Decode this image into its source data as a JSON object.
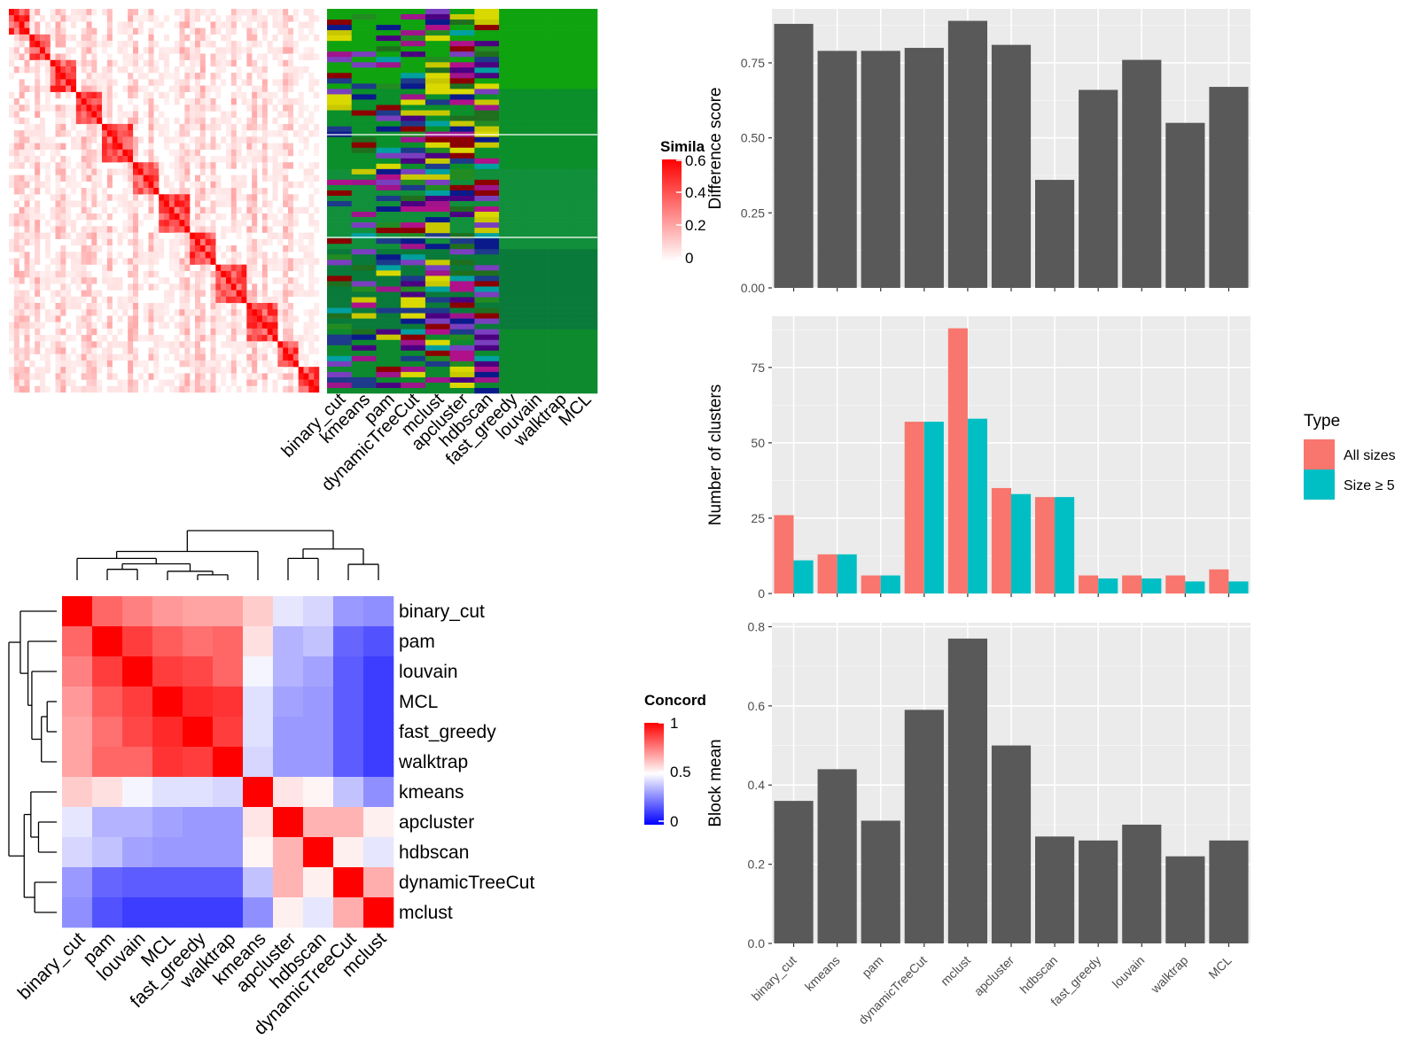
{
  "similarity_panel": {
    "legend_title": "Simila",
    "legend_ticks": [
      "0.6",
      "0.4",
      "0.2",
      "0"
    ],
    "method_labels": [
      "binary_cut",
      "kmeans",
      "pam",
      "dynamicTreeCut",
      "mclust",
      "apcluster",
      "hdbscan",
      "fast_greedy",
      "louvain",
      "walktrap",
      "MCL"
    ]
  },
  "chart_data": [
    {
      "type": "heatmap",
      "title": "",
      "legend_title": "Concord",
      "legend_ticks": [
        "1",
        "0.5",
        "0"
      ],
      "rows": [
        "binary_cut",
        "pam",
        "louvain",
        "MCL",
        "fast_greedy",
        "walktrap",
        "kmeans",
        "apcluster",
        "hdbscan",
        "dynamicTreeCut",
        "mclust"
      ],
      "cols": [
        "binary_cut",
        "pam",
        "louvain",
        "MCL",
        "fast_greedy",
        "walktrap",
        "kmeans",
        "apcluster",
        "hdbscan",
        "dynamicTreeCut",
        "mclust"
      ],
      "values": [
        [
          1.0,
          0.8,
          0.75,
          0.7,
          0.68,
          0.68,
          0.6,
          0.45,
          0.42,
          0.3,
          0.28
        ],
        [
          0.8,
          1.0,
          0.88,
          0.82,
          0.78,
          0.8,
          0.56,
          0.35,
          0.38,
          0.2,
          0.16
        ],
        [
          0.75,
          0.88,
          1.0,
          0.88,
          0.86,
          0.8,
          0.48,
          0.35,
          0.32,
          0.18,
          0.12
        ],
        [
          0.7,
          0.82,
          0.88,
          1.0,
          0.92,
          0.9,
          0.44,
          0.32,
          0.3,
          0.18,
          0.12
        ],
        [
          0.68,
          0.78,
          0.86,
          0.92,
          1.0,
          0.88,
          0.44,
          0.3,
          0.3,
          0.18,
          0.12
        ],
        [
          0.68,
          0.8,
          0.8,
          0.9,
          0.88,
          1.0,
          0.42,
          0.3,
          0.3,
          0.18,
          0.12
        ],
        [
          0.6,
          0.56,
          0.48,
          0.44,
          0.44,
          0.42,
          1.0,
          0.55,
          0.52,
          0.38,
          0.28
        ],
        [
          0.45,
          0.35,
          0.35,
          0.32,
          0.3,
          0.3,
          0.55,
          1.0,
          0.65,
          0.65,
          0.53
        ],
        [
          0.42,
          0.38,
          0.32,
          0.3,
          0.3,
          0.3,
          0.52,
          0.65,
          1.0,
          0.53,
          0.45
        ],
        [
          0.3,
          0.2,
          0.18,
          0.18,
          0.18,
          0.18,
          0.38,
          0.65,
          0.53,
          1.0,
          0.66
        ],
        [
          0.28,
          0.16,
          0.12,
          0.12,
          0.12,
          0.12,
          0.28,
          0.53,
          0.45,
          0.66,
          1.0
        ]
      ]
    },
    {
      "type": "bar",
      "title": "",
      "xlabel": "",
      "ylabel": "Difference score",
      "categories": [
        "binary_cut",
        "kmeans",
        "pam",
        "dynamicTreeCut",
        "mclust",
        "apcluster",
        "hdbscan",
        "fast_greedy",
        "louvain",
        "walktrap",
        "MCL"
      ],
      "values": [
        0.88,
        0.79,
        0.79,
        0.8,
        0.89,
        0.81,
        0.36,
        0.66,
        0.76,
        0.55,
        0.67
      ],
      "ylim": [
        0,
        0.93
      ],
      "yticks": [
        "0.00",
        "0.25",
        "0.50",
        "0.75"
      ],
      "bar_color": "#595959",
      "grid": true
    },
    {
      "type": "bar",
      "title": "",
      "xlabel": "",
      "ylabel": "Number of clusters",
      "categories": [
        "binary_cut",
        "kmeans",
        "pam",
        "dynamicTreeCut",
        "mclust",
        "apcluster",
        "hdbscan",
        "fast_greedy",
        "louvain",
        "walktrap",
        "MCL"
      ],
      "series": [
        {
          "name": "All sizes",
          "values": [
            26,
            13,
            6,
            57,
            88,
            35,
            32,
            6,
            6,
            6,
            8
          ],
          "color": "#F8766D"
        },
        {
          "name": "Size ≥ 5",
          "values": [
            11,
            13,
            6,
            57,
            58,
            33,
            32,
            5,
            5,
            4,
            4
          ],
          "color": "#00BFC4"
        }
      ],
      "ylim": [
        0,
        92
      ],
      "yticks": [
        "0",
        "25",
        "50",
        "75"
      ],
      "legend_title": "Type",
      "legend_position": "right",
      "grid": true
    },
    {
      "type": "bar",
      "title": "",
      "xlabel": "",
      "ylabel": "Block mean",
      "categories": [
        "binary_cut",
        "kmeans",
        "pam",
        "dynamicTreeCut",
        "mclust",
        "apcluster",
        "hdbscan",
        "fast_greedy",
        "louvain",
        "walktrap",
        "MCL"
      ],
      "values": [
        0.36,
        0.44,
        0.31,
        0.59,
        0.77,
        0.5,
        0.27,
        0.26,
        0.3,
        0.22,
        0.26
      ],
      "ylim": [
        0,
        0.81
      ],
      "yticks": [
        "0.0",
        "0.2",
        "0.4",
        "0.6",
        "0.8"
      ],
      "bar_color": "#595959",
      "grid": true
    }
  ]
}
